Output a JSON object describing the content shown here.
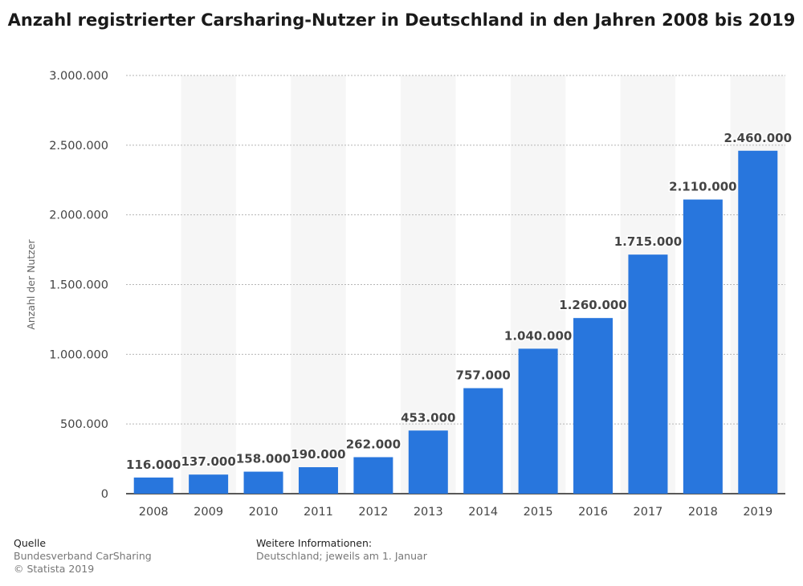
{
  "chart_data": {
    "type": "bar",
    "title": "Anzahl registrierter Carsharing-Nutzer in Deutschland in den Jahren 2008 bis 2019",
    "ylabel": "Anzahl der Nutzer",
    "xlabel": "",
    "categories": [
      "2008",
      "2009",
      "2010",
      "2011",
      "2012",
      "2013",
      "2014",
      "2015",
      "2016",
      "2017",
      "2018",
      "2019"
    ],
    "values": [
      116000,
      137000,
      158000,
      190000,
      262000,
      453000,
      757000,
      1040000,
      1260000,
      1715000,
      2110000,
      2460000
    ],
    "value_labels": [
      "116.000",
      "137.000",
      "158.000",
      "190.000",
      "262.000",
      "453.000",
      "757.000",
      "1.040.000",
      "1.260.000",
      "1.715.000",
      "2.110.000",
      "2.460.000"
    ],
    "ylim": [
      0,
      3000000
    ],
    "yticks": [
      0,
      500000,
      1000000,
      1500000,
      2000000,
      2500000,
      3000000
    ],
    "ytick_labels": [
      "0",
      "500.000",
      "1.000.000",
      "1.500.000",
      "2.000.000",
      "2.500.000",
      "3.000.000"
    ],
    "grid": true,
    "bar_color": "#2876dd"
  },
  "footer": {
    "source_heading": "Quelle",
    "source_text": "Bundesverband CarSharing",
    "copyright": "© Statista 2019",
    "info_heading": "Weitere Informationen:",
    "info_text": "Deutschland; jeweils am 1. Januar"
  }
}
